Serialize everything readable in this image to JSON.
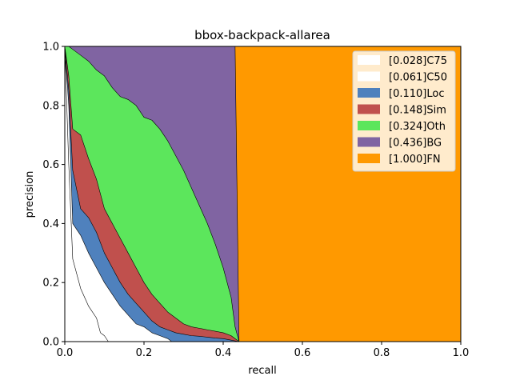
{
  "chart_data": {
    "type": "area",
    "title": "bbox-backpack-allarea",
    "xlabel": "recall",
    "ylabel": "precision",
    "xlim": [
      0,
      1
    ],
    "ylim": [
      0,
      1
    ],
    "xticks": [
      "0.0",
      "0.2",
      "0.4",
      "0.6",
      "0.8",
      "1.0"
    ],
    "yticks": [
      "0.0",
      "0.2",
      "0.4",
      "0.6",
      "0.8",
      "1.0"
    ],
    "legend_position": "top-right",
    "grid": false,
    "series": [
      {
        "name": "[0.028]C75",
        "color": "#ffffff",
        "x": [
          0,
          0.01,
          0.02,
          0.04,
          0.06,
          0.08,
          0.09,
          0.1,
          0.11,
          0.12
        ],
        "y": [
          1,
          0.6,
          0.28,
          0.18,
          0.12,
          0.08,
          0.03,
          0.02,
          0.0,
          0.0
        ]
      },
      {
        "name": "[0.061]C50",
        "color": "#ffffff",
        "x": [
          0,
          0.01,
          0.02,
          0.04,
          0.06,
          0.08,
          0.1,
          0.12,
          0.14,
          0.16,
          0.18,
          0.2,
          0.22,
          0.24,
          0.26,
          0.27
        ],
        "y": [
          1,
          0.8,
          0.4,
          0.36,
          0.3,
          0.25,
          0.2,
          0.16,
          0.12,
          0.09,
          0.06,
          0.05,
          0.03,
          0.02,
          0.01,
          0.0
        ]
      },
      {
        "name": "[0.110]Loc",
        "color": "#4f81bd",
        "x": [
          0,
          0.01,
          0.02,
          0.04,
          0.06,
          0.08,
          0.1,
          0.12,
          0.14,
          0.16,
          0.18,
          0.2,
          0.22,
          0.24,
          0.26,
          0.28,
          0.3,
          0.32,
          0.34,
          0.36,
          0.38,
          0.4,
          0.42,
          0.44
        ],
        "y": [
          1,
          0.85,
          0.58,
          0.45,
          0.42,
          0.37,
          0.3,
          0.25,
          0.2,
          0.16,
          0.13,
          0.1,
          0.07,
          0.05,
          0.04,
          0.03,
          0.025,
          0.02,
          0.018,
          0.015,
          0.012,
          0.01,
          0.005,
          0.0
        ]
      },
      {
        "name": "[0.148]Sim",
        "color": "#c0504d",
        "x": [
          0,
          0.01,
          0.02,
          0.04,
          0.06,
          0.08,
          0.1,
          0.12,
          0.14,
          0.16,
          0.18,
          0.2,
          0.22,
          0.24,
          0.26,
          0.28,
          0.3,
          0.32,
          0.34,
          0.36,
          0.38,
          0.4,
          0.42,
          0.44
        ],
        "y": [
          1,
          0.9,
          0.72,
          0.7,
          0.62,
          0.55,
          0.45,
          0.4,
          0.35,
          0.3,
          0.25,
          0.2,
          0.16,
          0.13,
          0.1,
          0.08,
          0.06,
          0.05,
          0.045,
          0.04,
          0.035,
          0.03,
          0.02,
          0.0
        ]
      },
      {
        "name": "[0.324]Oth",
        "color": "#5ce65c",
        "x": [
          0,
          0.01,
          0.02,
          0.04,
          0.06,
          0.08,
          0.1,
          0.12,
          0.14,
          0.16,
          0.18,
          0.2,
          0.22,
          0.24,
          0.26,
          0.28,
          0.3,
          0.32,
          0.34,
          0.36,
          0.38,
          0.4,
          0.42,
          0.43,
          0.44
        ],
        "y": [
          1,
          1,
          0.99,
          0.97,
          0.95,
          0.92,
          0.9,
          0.86,
          0.83,
          0.82,
          0.8,
          0.76,
          0.75,
          0.72,
          0.68,
          0.63,
          0.58,
          0.52,
          0.46,
          0.4,
          0.33,
          0.25,
          0.15,
          0.05,
          0.0
        ]
      },
      {
        "name": "[0.436]BG",
        "color": "#8064a2",
        "x": [
          0,
          0.43,
          0.44
        ],
        "y": [
          1,
          1,
          0.0
        ]
      },
      {
        "name": "[1.000]FN",
        "color": "#ff9900",
        "x": [
          0,
          1
        ],
        "y": [
          1,
          1
        ]
      }
    ]
  }
}
